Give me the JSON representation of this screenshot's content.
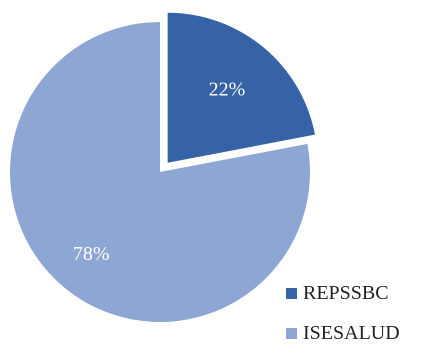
{
  "chart_data": {
    "type": "pie",
    "exploded": true,
    "categories": [
      "REPSSBC",
      "ISESALUD"
    ],
    "values": [
      22,
      78
    ],
    "labels": [
      "22%",
      "78%"
    ],
    "colors": [
      "#3563a6",
      "#8ea6d4"
    ],
    "legend_position": "bottom-right"
  }
}
